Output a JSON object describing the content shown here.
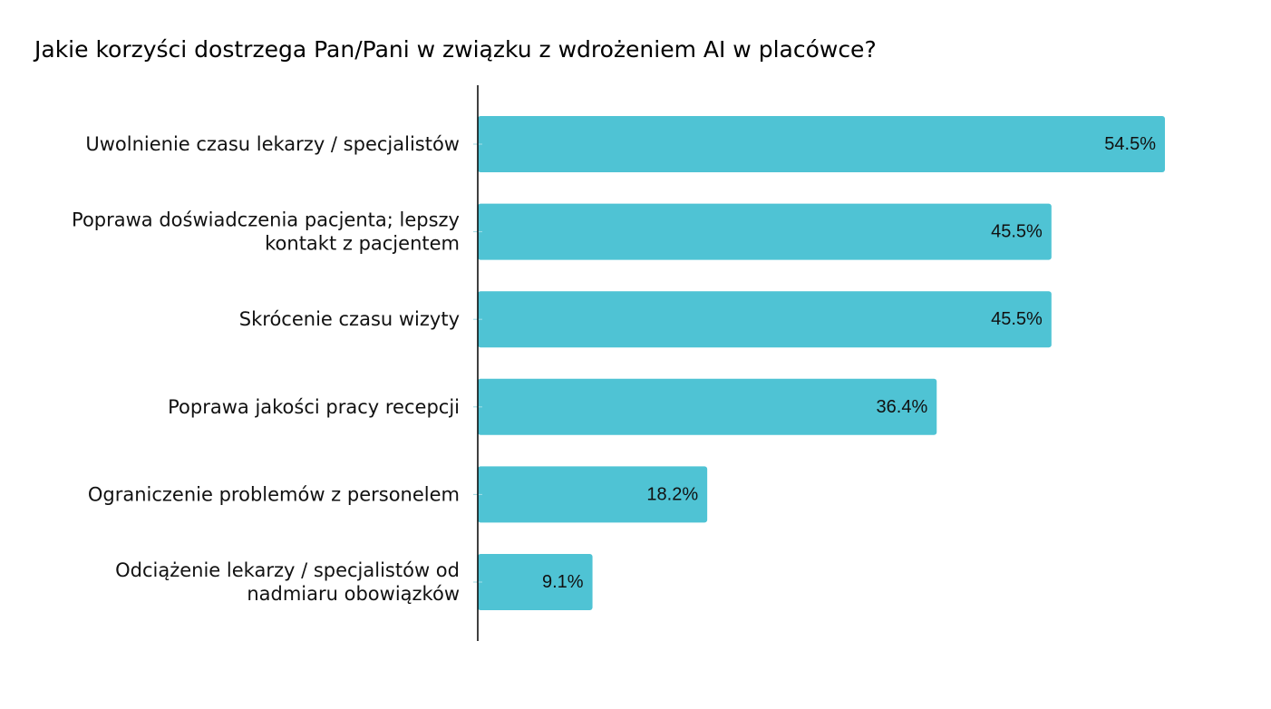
{
  "chart_data": {
    "type": "bar",
    "orientation": "horizontal",
    "title": "Jakie korzyści dostrzega Pan/Pani w związku z wdrożeniem AI w placówce?",
    "categories": [
      [
        "Uwolnienie czasu lekarzy / specjalistów"
      ],
      [
        "Poprawa doświadczenia pacjenta; lepszy",
        "kontakt z pacjentem"
      ],
      [
        "Skrócenie czasu wizyty"
      ],
      [
        "Poprawa jakości pracy recepcji"
      ],
      [
        "Ograniczenie problemów z personelem"
      ],
      [
        "Odciążenie lekarzy / specjalistów od",
        "nadmiaru obowiązków"
      ]
    ],
    "values": [
      54.5,
      45.5,
      45.5,
      36.4,
      18.2,
      9.1
    ],
    "value_labels": [
      "54.5%",
      "45.5%",
      "45.5%",
      "36.4%",
      "18.2%",
      "9.1%"
    ],
    "xlim": [
      0,
      60
    ],
    "grid": false,
    "legend": "none",
    "bar_color": "#4fc3d4",
    "axis_color": "#000000"
  }
}
